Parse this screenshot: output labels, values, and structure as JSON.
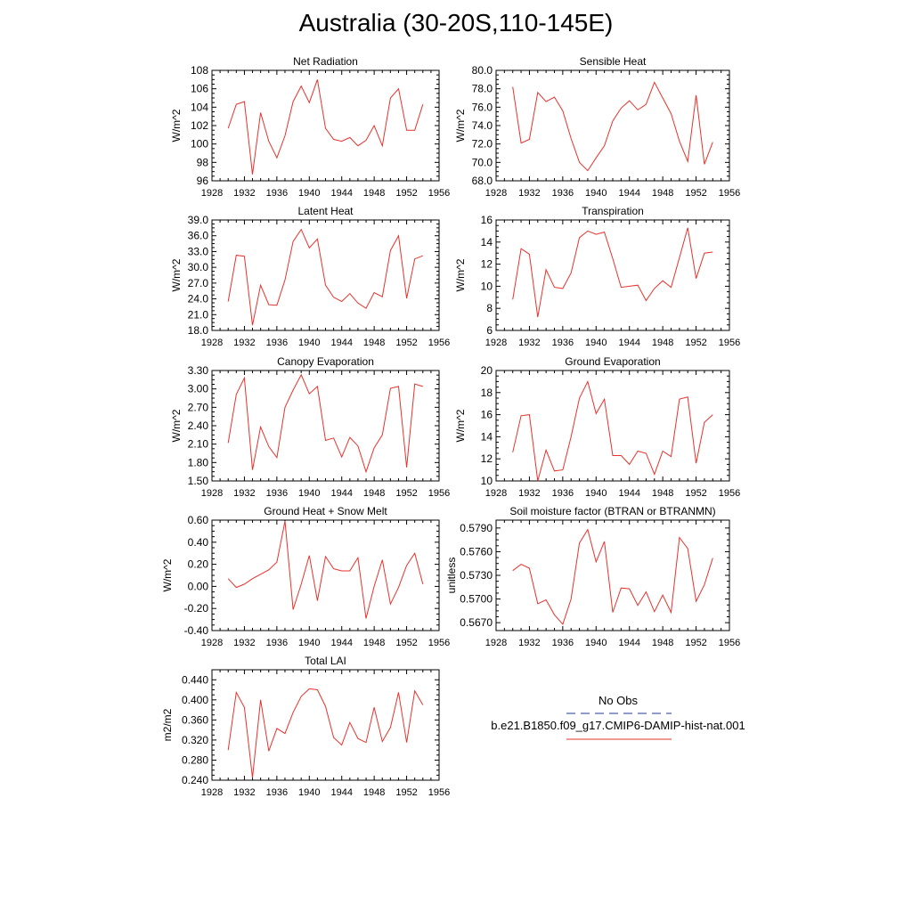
{
  "title": "Australia (30-20S,110-145E)",
  "legend": {
    "entries": [
      {
        "label": "No Obs",
        "color": "#1f3a93",
        "dash": true
      },
      {
        "label": "b.e21.B1850.f09_g17.CMIP6-DAMIP-hist-nat.001",
        "color": "#e8322c",
        "dash": false
      }
    ]
  },
  "chart_data": [
    {
      "type": "line",
      "title": "Net Radiation",
      "ylabel": "W/m^2",
      "xlim": [
        1928,
        1956
      ],
      "ylim": [
        96,
        108
      ],
      "xticks": [
        "1928",
        "1932",
        "1936",
        "1940",
        "1944",
        "1948",
        "1952",
        "1956"
      ],
      "yticks": [
        "96",
        "98",
        "100",
        "102",
        "104",
        "106",
        "108"
      ],
      "x": [
        1930,
        1931,
        1932,
        1933,
        1934,
        1935,
        1936,
        1937,
        1938,
        1939,
        1940,
        1941,
        1942,
        1943,
        1944,
        1945,
        1946,
        1947,
        1948,
        1949,
        1950,
        1951,
        1952,
        1953,
        1954
      ],
      "series": [
        {
          "color": "#e8322c",
          "values": [
            101.7,
            104.3,
            104.6,
            96.7,
            103.4,
            100.3,
            98.5,
            100.9,
            104.6,
            106.3,
            104.5,
            107.0,
            101.7,
            100.5,
            100.3,
            100.7,
            99.8,
            100.4,
            102.0,
            99.8,
            105.0,
            106.0,
            101.5,
            101.5,
            104.3
          ]
        }
      ]
    },
    {
      "type": "line",
      "title": "Sensible Heat",
      "ylabel": "W/m^2",
      "xlim": [
        1928,
        1956
      ],
      "ylim": [
        68,
        80
      ],
      "xticks": [
        "1928",
        "1932",
        "1936",
        "1940",
        "1944",
        "1948",
        "1952",
        "1956"
      ],
      "yticks": [
        "68.0",
        "70.0",
        "72.0",
        "74.0",
        "76.0",
        "78.0",
        "80.0"
      ],
      "x": [
        1930,
        1931,
        1932,
        1933,
        1934,
        1935,
        1936,
        1937,
        1938,
        1939,
        1940,
        1941,
        1942,
        1943,
        1944,
        1945,
        1946,
        1947,
        1948,
        1949,
        1950,
        1951,
        1952,
        1953,
        1954
      ],
      "series": [
        {
          "color": "#e8322c",
          "values": [
            78.2,
            72.1,
            72.5,
            77.6,
            76.6,
            77.1,
            75.6,
            72.6,
            70.0,
            69.1,
            70.5,
            71.8,
            74.5,
            75.9,
            76.7,
            75.7,
            76.3,
            78.7,
            77.0,
            75.3,
            72.3,
            70.1,
            77.3,
            69.8,
            72.2
          ]
        }
      ]
    },
    {
      "type": "line",
      "title": "Latent Heat",
      "ylabel": "W/m^2",
      "xlim": [
        1928,
        1956
      ],
      "ylim": [
        18,
        39
      ],
      "xticks": [
        "1928",
        "1932",
        "1936",
        "1940",
        "1944",
        "1948",
        "1952",
        "1956"
      ],
      "yticks": [
        "18.0",
        "21.0",
        "24.0",
        "27.0",
        "30.0",
        "33.0",
        "36.0",
        "39.0"
      ],
      "x": [
        1930,
        1931,
        1932,
        1933,
        1934,
        1935,
        1936,
        1937,
        1938,
        1939,
        1940,
        1941,
        1942,
        1943,
        1944,
        1945,
        1946,
        1947,
        1948,
        1949,
        1950,
        1951,
        1952,
        1953,
        1954
      ],
      "series": [
        {
          "color": "#e8322c",
          "values": [
            23.5,
            32.3,
            32.1,
            19.0,
            26.6,
            22.9,
            22.8,
            27.6,
            34.9,
            37.2,
            33.7,
            35.4,
            26.6,
            24.3,
            23.5,
            25.0,
            23.2,
            22.2,
            25.2,
            24.4,
            33.2,
            36.0,
            24.1,
            31.6,
            32.2
          ]
        }
      ]
    },
    {
      "type": "line",
      "title": "Transpiration",
      "ylabel": "W/m^2",
      "xlim": [
        1928,
        1956
      ],
      "ylim": [
        6,
        16
      ],
      "xticks": [
        "1928",
        "1932",
        "1936",
        "1940",
        "1944",
        "1948",
        "1952",
        "1956"
      ],
      "yticks": [
        "6",
        "8",
        "10",
        "12",
        "14",
        "16"
      ],
      "x": [
        1930,
        1931,
        1932,
        1933,
        1934,
        1935,
        1936,
        1937,
        1938,
        1939,
        1940,
        1941,
        1942,
        1943,
        1944,
        1945,
        1946,
        1947,
        1948,
        1949,
        1950,
        1951,
        1952,
        1953,
        1954
      ],
      "series": [
        {
          "color": "#e8322c",
          "values": [
            8.8,
            13.4,
            12.9,
            7.2,
            11.5,
            9.9,
            9.8,
            11.2,
            14.4,
            15.0,
            14.7,
            14.9,
            12.5,
            9.9,
            10.0,
            10.1,
            8.7,
            9.8,
            10.5,
            9.9,
            12.6,
            15.3,
            10.7,
            13.0,
            13.1
          ]
        }
      ]
    },
    {
      "type": "line",
      "title": "Canopy Evaporation",
      "ylabel": "W/m^2",
      "xlim": [
        1928,
        1956
      ],
      "ylim": [
        1.5,
        3.3
      ],
      "xticks": [
        "1928",
        "1932",
        "1936",
        "1940",
        "1944",
        "1948",
        "1952",
        "1956"
      ],
      "yticks": [
        "1.50",
        "1.80",
        "2.10",
        "2.40",
        "2.70",
        "3.00",
        "3.30"
      ],
      "x": [
        1930,
        1931,
        1932,
        1933,
        1934,
        1935,
        1936,
        1937,
        1938,
        1939,
        1940,
        1941,
        1942,
        1943,
        1944,
        1945,
        1946,
        1947,
        1948,
        1949,
        1950,
        1951,
        1952,
        1953,
        1954
      ],
      "series": [
        {
          "color": "#e8322c",
          "values": [
            2.12,
            2.91,
            3.18,
            1.68,
            2.38,
            2.06,
            1.88,
            2.7,
            2.98,
            3.23,
            2.92,
            3.04,
            2.16,
            2.2,
            1.89,
            2.21,
            2.07,
            1.65,
            2.04,
            2.25,
            3.01,
            3.04,
            1.72,
            3.08,
            3.04
          ]
        }
      ]
    },
    {
      "type": "line",
      "title": "Ground Evaporation",
      "ylabel": "W/m^2",
      "xlim": [
        1928,
        1956
      ],
      "ylim": [
        10,
        20
      ],
      "xticks": [
        "1928",
        "1932",
        "1936",
        "1940",
        "1944",
        "1948",
        "1952",
        "1956"
      ],
      "yticks": [
        "10",
        "12",
        "14",
        "16",
        "18",
        "20"
      ],
      "x": [
        1930,
        1931,
        1932,
        1933,
        1934,
        1935,
        1936,
        1937,
        1938,
        1939,
        1940,
        1941,
        1942,
        1943,
        1944,
        1945,
        1946,
        1947,
        1948,
        1949,
        1950,
        1951,
        1952,
        1953,
        1954
      ],
      "series": [
        {
          "color": "#e8322c",
          "values": [
            12.6,
            15.9,
            16.0,
            10.0,
            12.8,
            10.9,
            11.0,
            14.0,
            17.5,
            19.0,
            16.1,
            17.4,
            12.3,
            12.3,
            11.5,
            12.7,
            12.5,
            10.6,
            12.7,
            12.2,
            17.4,
            17.6,
            11.6,
            15.3,
            16.0
          ]
        }
      ]
    },
    {
      "type": "line",
      "title": "Ground Heat + Snow Melt",
      "ylabel": "W/m^2",
      "xlim": [
        1928,
        1956
      ],
      "ylim": [
        -0.4,
        0.6
      ],
      "xticks": [
        "1928",
        "1932",
        "1936",
        "1940",
        "1944",
        "1948",
        "1952",
        "1956"
      ],
      "yticks": [
        "-0.40",
        "-0.20",
        "0.00",
        "0.20",
        "0.40",
        "0.60"
      ],
      "x": [
        1930,
        1931,
        1932,
        1933,
        1934,
        1935,
        1936,
        1937,
        1938,
        1939,
        1940,
        1941,
        1942,
        1943,
        1944,
        1945,
        1946,
        1947,
        1948,
        1949,
        1950,
        1951,
        1952,
        1953,
        1954
      ],
      "series": [
        {
          "color": "#e8322c",
          "values": [
            0.07,
            -0.01,
            0.02,
            0.07,
            0.11,
            0.15,
            0.22,
            0.59,
            -0.21,
            0.02,
            0.28,
            -0.13,
            0.27,
            0.16,
            0.14,
            0.14,
            0.26,
            -0.29,
            0.0,
            0.24,
            -0.16,
            -0.01,
            0.19,
            0.3,
            0.02
          ]
        }
      ]
    },
    {
      "type": "line",
      "title": "Soil moisture factor (BTRAN or BTRANMN)",
      "ylabel": "unitless",
      "xlim": [
        1928,
        1956
      ],
      "ylim": [
        0.566,
        0.58
      ],
      "xticks": [
        "1928",
        "1932",
        "1936",
        "1940",
        "1944",
        "1948",
        "1952",
        "1956"
      ],
      "yticks": [
        "0.5670",
        "0.5700",
        "0.5730",
        "0.5760",
        "0.5790"
      ],
      "ytick_values": [
        0.567,
        0.57,
        0.573,
        0.576,
        0.579
      ],
      "x": [
        1930,
        1931,
        1932,
        1933,
        1934,
        1935,
        1936,
        1937,
        1938,
        1939,
        1940,
        1941,
        1942,
        1943,
        1944,
        1945,
        1946,
        1947,
        1948,
        1949,
        1950,
        1951,
        1952,
        1953,
        1954
      ],
      "series": [
        {
          "color": "#e8322c",
          "values": [
            0.5736,
            0.5744,
            0.5739,
            0.5694,
            0.5699,
            0.568,
            0.5668,
            0.57,
            0.5771,
            0.5788,
            0.5747,
            0.5773,
            0.5683,
            0.5714,
            0.5713,
            0.5692,
            0.5709,
            0.5684,
            0.5705,
            0.5683,
            0.5778,
            0.5764,
            0.5697,
            0.5718,
            0.5752
          ]
        }
      ]
    },
    {
      "type": "line",
      "title": "Total LAI",
      "ylabel": "m2/m2",
      "xlim": [
        1928,
        1956
      ],
      "ylim": [
        0.24,
        0.46
      ],
      "xticks": [
        "1928",
        "1932",
        "1936",
        "1940",
        "1944",
        "1948",
        "1952",
        "1956"
      ],
      "yticks": [
        "0.240",
        "0.280",
        "0.320",
        "0.360",
        "0.400",
        "0.440"
      ],
      "ytick_values": [
        0.24,
        0.28,
        0.32,
        0.36,
        0.4,
        0.44
      ],
      "x": [
        1930,
        1931,
        1932,
        1933,
        1934,
        1935,
        1936,
        1937,
        1938,
        1939,
        1940,
        1941,
        1942,
        1943,
        1944,
        1945,
        1946,
        1947,
        1948,
        1949,
        1950,
        1951,
        1952,
        1953,
        1954
      ],
      "series": [
        {
          "color": "#e8322c",
          "values": [
            0.3,
            0.415,
            0.385,
            0.245,
            0.4,
            0.298,
            0.343,
            0.333,
            0.375,
            0.407,
            0.422,
            0.42,
            0.387,
            0.325,
            0.31,
            0.355,
            0.323,
            0.315,
            0.385,
            0.317,
            0.345,
            0.415,
            0.315,
            0.418,
            0.39
          ]
        }
      ]
    }
  ]
}
